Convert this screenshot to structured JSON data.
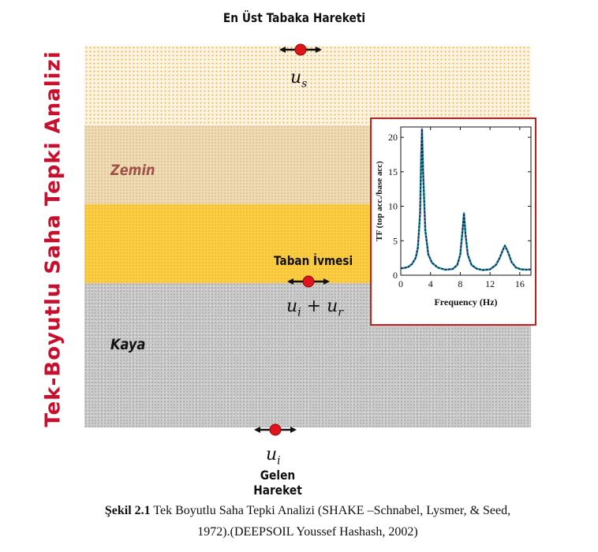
{
  "vertical_title": "Tek-Boyutlu Saha Tepki Analizi",
  "top_title": "En Üst Tabaka Hareketi",
  "labels": {
    "zemin": "Zemin",
    "kaya": "Kaya",
    "taban": "Taban İvmesi",
    "gelen": "Gelen Hareket"
  },
  "math": {
    "us_base": "u",
    "us_sub": "s",
    "ui_base": "u",
    "ui_sub": "i",
    "plus": " + ",
    "ur_base": "u",
    "ur_sub": "r"
  },
  "colors": {
    "title_red": "#c8102e",
    "marker_red": "#e0141c",
    "inset_border": "#d11a1a",
    "curve_dark": "#1a1a5e",
    "curve_teal": "#2fa8a0"
  },
  "chart_data": {
    "type": "line",
    "xlabel": "Frequency (Hz)",
    "ylabel": "TF (top acc./base acc)",
    "xlim": [
      0,
      17.5
    ],
    "ylim": [
      0,
      21.5
    ],
    "xticks": [
      "0",
      "4",
      "8",
      "12",
      "16"
    ],
    "xtick_values": [
      0,
      4,
      8,
      12,
      16
    ],
    "yticks": [
      "0",
      "5",
      "10",
      "15",
      "20"
    ],
    "ytick_values": [
      0,
      5,
      10,
      15,
      20
    ],
    "series": [
      {
        "x": [
          0,
          0.5,
          1,
          1.5,
          2,
          2.3,
          2.6,
          2.75,
          2.85,
          3.0,
          3.3,
          3.7,
          4.2,
          5,
          6,
          7,
          7.6,
          8.0,
          8.3,
          8.5,
          8.7,
          9.0,
          9.5,
          10.2,
          11,
          12,
          12.8,
          13.3,
          13.7,
          14.0,
          14.4,
          14.9,
          15.5,
          16.2,
          17,
          17.5
        ],
        "y": [
          1.0,
          1.05,
          1.2,
          1.6,
          2.5,
          4.0,
          9.0,
          17.0,
          21.2,
          15.0,
          6.5,
          3.0,
          1.8,
          1.1,
          0.8,
          0.9,
          1.5,
          3.0,
          6.5,
          9.0,
          6.0,
          3.0,
          1.5,
          0.95,
          0.75,
          0.85,
          1.5,
          2.5,
          3.6,
          4.3,
          3.4,
          1.9,
          1.1,
          0.85,
          0.8,
          0.85
        ]
      }
    ]
  },
  "caption": {
    "bold": "Şekil 2.1",
    "line1": " Tek Boyutlu Saha Tepki Analizi (SHAKE –Schnabel, Lysmer, & Seed,",
    "line2": "1972).(DEEPSOIL Youssef Hashash, 2002)"
  }
}
